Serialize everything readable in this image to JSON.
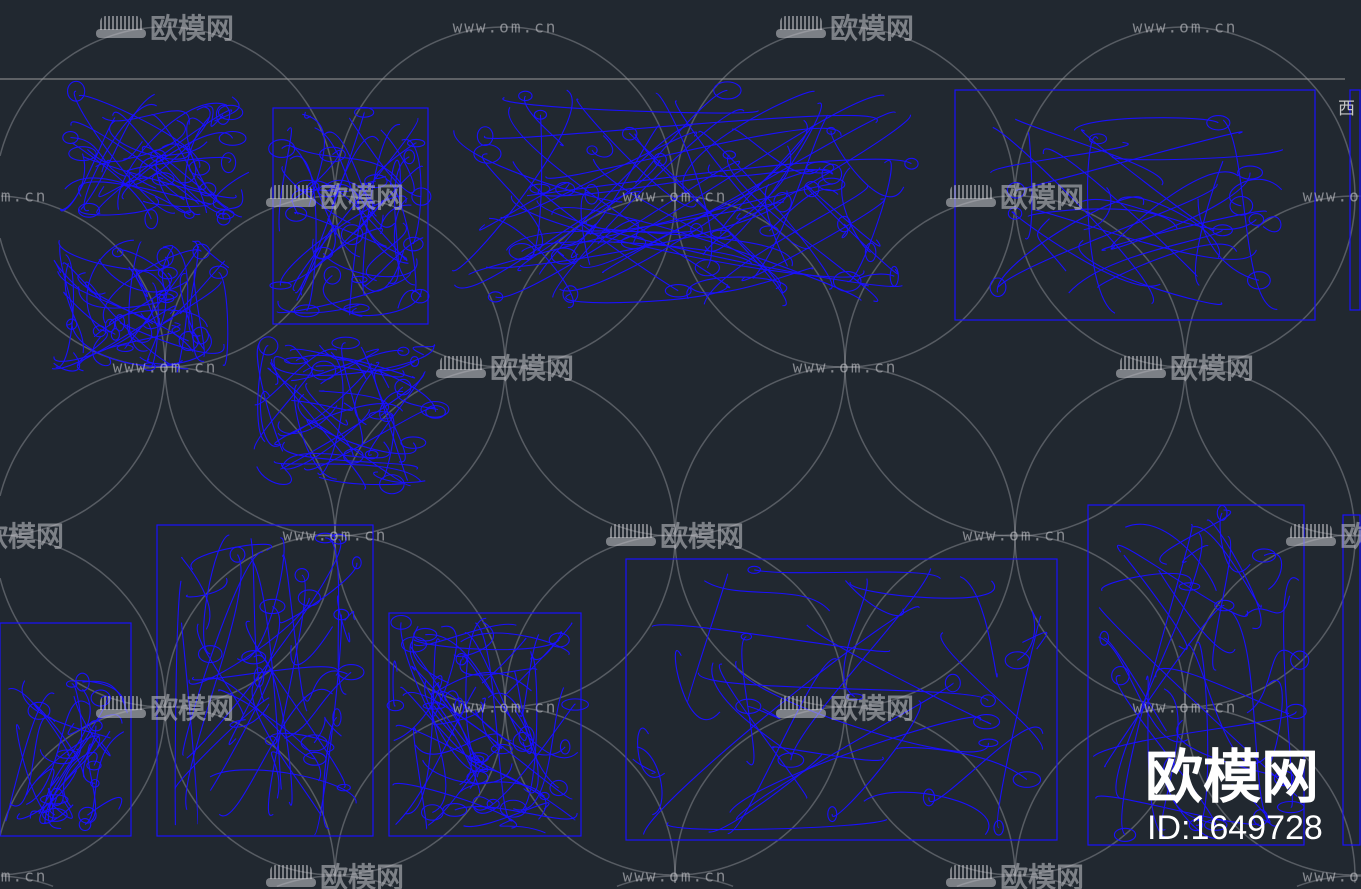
{
  "viewport": {
    "background": "#212830",
    "line_color": "#1a10ff",
    "side_label": "西"
  },
  "watermark": {
    "logo_text": "欧模网",
    "url_text": "www.om.cn"
  },
  "brand": {
    "name": "欧模网",
    "id": "ID:1649728"
  }
}
